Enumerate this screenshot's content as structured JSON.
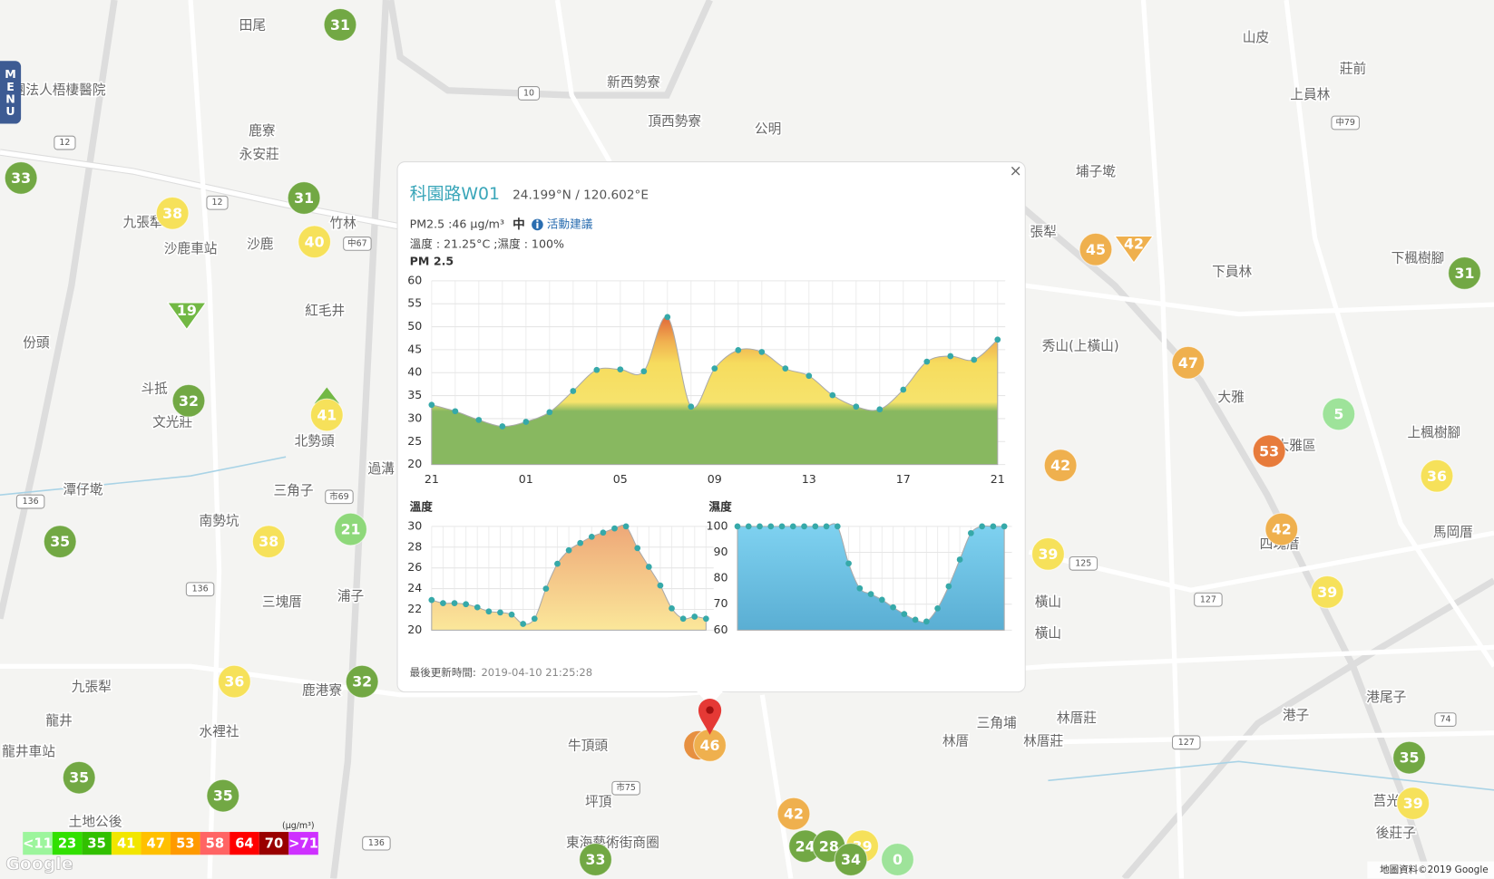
{
  "menu": "MENU",
  "places": [
    "田尾",
    "社團法人梧棲醫院",
    "鹿寮",
    "永安莊",
    "九張犁",
    "沙鹿車站",
    "沙鹿",
    "竹林",
    "紅毛井",
    "份頭",
    "斗抵",
    "文光莊",
    "北勢頭",
    "過溝",
    "三角子",
    "潭仔墘",
    "南勢坑",
    "三塊厝",
    "浦子",
    "九張犁",
    "龍井",
    "水裡社",
    "鹿港寮",
    "龍井車站",
    "土地公後",
    "新西勢寮",
    "頂西勢寮",
    "公明",
    "山皮",
    "莊前",
    "上員林",
    "埔子墘",
    "張犁",
    "下員林",
    "下楓樹腳",
    "秀山(上橫山)",
    "大雅",
    "大雅區",
    "上楓樹腳",
    "馬岡厝",
    "四塊厝",
    "橫山",
    "橫山",
    "港子",
    "港尾子",
    "三角埔",
    "林厝",
    "林厝莊",
    "林厝莊",
    "牛頂頭",
    "坪頂",
    "東海藝術街商圈",
    "莒光",
    "後莊子"
  ],
  "road_labels": [
    "12",
    "12",
    "10",
    "136",
    "136",
    "136",
    "中67",
    "市69",
    "市75",
    "中79",
    "125",
    "127",
    "127",
    "74"
  ],
  "markers": [
    {
      "value": 31,
      "color": "#72a844",
      "shape": "circle"
    },
    {
      "value": 33,
      "color": "#72a844",
      "shape": "circle"
    },
    {
      "value": 31,
      "color": "#72a844",
      "shape": "circle"
    },
    {
      "value": 38,
      "color": "#f6e15a",
      "shape": "circle"
    },
    {
      "value": 40,
      "color": "#f6e15a",
      "shape": "circle"
    },
    {
      "value": 19,
      "color": "#72b844",
      "shape": "triangle-down"
    },
    {
      "value": 32,
      "color": "#72a844",
      "shape": "circle"
    },
    {
      "value": 41,
      "color": "#f6e15a",
      "shape": "circle"
    },
    {
      "value": 21,
      "color": "#8ed87a",
      "shape": "circle"
    },
    {
      "value": 35,
      "color": "#72a844",
      "shape": "circle"
    },
    {
      "value": 38,
      "color": "#f6e15a",
      "shape": "circle"
    },
    {
      "value": 36,
      "color": "#f6e15a",
      "shape": "circle"
    },
    {
      "value": 32,
      "color": "#72a844",
      "shape": "circle"
    },
    {
      "value": 35,
      "color": "#72a844",
      "shape": "circle"
    },
    {
      "value": 35,
      "color": "#72a844",
      "shape": "circle"
    },
    {
      "value": 45,
      "color": "#efb04e",
      "shape": "circle"
    },
    {
      "value": 42,
      "color": "#efb04e",
      "shape": "triangle-down"
    },
    {
      "value": 31,
      "color": "#72a844",
      "shape": "circle"
    },
    {
      "value": 47,
      "color": "#efb04e",
      "shape": "circle"
    },
    {
      "value": 5,
      "color": "#9ee39a",
      "shape": "circle"
    },
    {
      "value": 42,
      "color": "#efb04e",
      "shape": "circle"
    },
    {
      "value": 53,
      "color": "#e77b3b",
      "shape": "circle"
    },
    {
      "value": 36,
      "color": "#f6e15a",
      "shape": "circle"
    },
    {
      "value": 42,
      "color": "#efb04e",
      "shape": "circle"
    },
    {
      "value": 39,
      "color": "#f6e15a",
      "shape": "circle"
    },
    {
      "value": 39,
      "color": "#f6e15a",
      "shape": "circle"
    },
    {
      "value": 35,
      "color": "#72a844",
      "shape": "circle"
    },
    {
      "value": 39,
      "color": "#f6e15a",
      "shape": "circle"
    },
    {
      "value": 46,
      "color": "#efb04e",
      "shape": "circle"
    },
    {
      "value": 42,
      "color": "#efb04e",
      "shape": "circle"
    },
    {
      "value": 24,
      "color": "#72a844",
      "shape": "circle"
    },
    {
      "value": 28,
      "color": "#72a844",
      "shape": "circle"
    },
    {
      "value": 39,
      "color": "#f6e15a",
      "shape": "circle"
    },
    {
      "value": 34,
      "color": "#72a844",
      "shape": "circle"
    },
    {
      "value": 0,
      "color": "#9ee39a",
      "shape": "circle"
    },
    {
      "value": 33,
      "color": "#72a844",
      "shape": "circle"
    }
  ],
  "legend": {
    "unit": "(μg/m³)",
    "items": [
      {
        "label": "<11",
        "color": "#9cf59c"
      },
      {
        "label": "23",
        "color": "#31e000"
      },
      {
        "label": "35",
        "color": "#31c000"
      },
      {
        "label": "41",
        "color": "#f2e600"
      },
      {
        "label": "47",
        "color": "#ffc000"
      },
      {
        "label": "53",
        "color": "#ff9a00"
      },
      {
        "label": "58",
        "color": "#ff6464"
      },
      {
        "label": "64",
        "color": "#ff0000"
      },
      {
        "label": "70",
        "color": "#990000"
      },
      {
        "label": ">71",
        "color": "#ce30ff"
      }
    ]
  },
  "popup": {
    "close": "×",
    "title": "科園路W01",
    "coords": "24.199°N / 120.602°E",
    "pm25": "PM2.5 :46 μg/m³",
    "level": "中",
    "advice": "活動建議",
    "weather": "溫度 : 21.25°C ;濕度 : 100%",
    "updated_label": "最後更新時間:",
    "updated": "2019-04-10 21:25:28"
  },
  "chart_data": [
    {
      "type": "area",
      "title": "PM 2.5",
      "categories": [
        "21",
        null,
        null,
        null,
        "01",
        null,
        null,
        null,
        "05",
        null,
        null,
        null,
        "09",
        null,
        null,
        null,
        "13",
        null,
        null,
        null,
        "17",
        null,
        null,
        null,
        "21"
      ],
      "values": [
        33.0,
        31.6,
        29.7,
        28.3,
        29.3,
        31.4,
        36.0,
        40.6,
        40.7,
        40.3,
        52.1,
        32.6,
        40.9,
        44.9,
        44.5,
        40.9,
        39.3,
        35.1,
        32.6,
        32.0,
        36.3,
        42.4,
        43.6,
        42.8,
        47.2
      ],
      "color": "#36a9a9",
      "ylim": [
        20,
        60
      ],
      "yticks": [
        20,
        25,
        30,
        35,
        40,
        45,
        50,
        55,
        60
      ],
      "grid": true
    },
    {
      "type": "area",
      "title": "溫度",
      "values": [
        22.9,
        22.6,
        22.6,
        22.5,
        22.2,
        21.8,
        21.7,
        21.5,
        20.6,
        21.1,
        24.0,
        26.4,
        27.7,
        28.4,
        29.0,
        29.4,
        29.8,
        30.0,
        27.9,
        26.1,
        24.3,
        22.1,
        21.1,
        21.3,
        21.1
      ],
      "color": "#36a9a9",
      "ylim": [
        20,
        30
      ],
      "yticks": [
        20,
        22,
        24,
        26,
        28,
        30
      ],
      "grid": true
    },
    {
      "type": "area",
      "title": "濕度",
      "values": [
        100,
        100,
        100,
        100,
        100,
        100,
        100,
        100,
        100,
        100,
        85.7,
        76.1,
        73.9,
        71.7,
        68.8,
        66.2,
        64.0,
        63.3,
        68.4,
        76.9,
        87.2,
        97.4,
        100,
        100,
        100
      ],
      "color": "#36a9a9",
      "ylim": [
        60,
        100
      ],
      "yticks": [
        60,
        70,
        80,
        90,
        100
      ],
      "grid": true
    }
  ],
  "google": "Google",
  "attribution": "地圖資料©2019 Google"
}
